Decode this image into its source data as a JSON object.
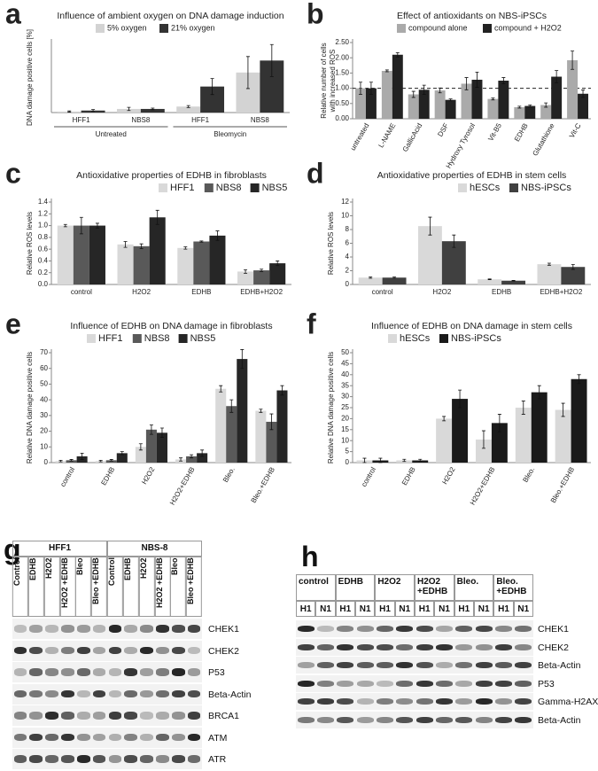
{
  "chart_data": [
    {
      "type": "bar",
      "panel_label": "a",
      "title": "Influence of ambient oxygen on DNA damage induction",
      "y_label": [
        "DNA damage positive cells [%]"
      ],
      "groups": [
        {
          "name": "Untreated",
          "categories": [
            "HFF1",
            "NBS8"
          ]
        },
        {
          "name": "Bleomycin",
          "categories": [
            "HFF1",
            "NBS8"
          ]
        }
      ],
      "series": [
        {
          "name": "5% oxygen",
          "color": "#d3d3d3",
          "values": [
            0.5,
            1.8,
            3,
            20
          ],
          "errors": [
            0.3,
            0.8,
            0.5,
            8
          ]
        },
        {
          "name": "21% oxygen",
          "color": "#333333",
          "values": [
            1,
            1.8,
            13,
            26
          ],
          "errors": [
            0.5,
            0.4,
            4,
            8
          ]
        }
      ],
      "ylim": [
        0,
        35
      ],
      "legend": "top"
    },
    {
      "type": "bar",
      "panel_label": "b",
      "title": "Effect of antioxidants on NBS-iPSCs",
      "y_label": [
        "Relative number of cells",
        "with increased ROS"
      ],
      "categories": [
        "untreated",
        "L-NAME",
        "GallicAcid",
        "DSF",
        "Hydroxy Tyrosol",
        "Vit-B5",
        "EDHB",
        "Glutathione",
        "Vit-C"
      ],
      "series": [
        {
          "name": "compound alone",
          "color": "#aaaaaa",
          "values": [
            1.0,
            1.57,
            0.8,
            0.93,
            1.15,
            0.65,
            0.38,
            0.45,
            1.92
          ],
          "errors": [
            0.2,
            0.03,
            0.1,
            0.08,
            0.2,
            0.03,
            0.03,
            0.07,
            0.3
          ]
        },
        {
          "name": "compound + H2O2",
          "color": "#222222",
          "values": [
            1.0,
            2.1,
            0.95,
            0.62,
            1.28,
            1.25,
            0.42,
            1.38,
            0.82
          ],
          "errors": [
            0.2,
            0.07,
            0.15,
            0.03,
            0.25,
            0.1,
            0.03,
            0.2,
            0.12
          ]
        }
      ],
      "ylim": [
        0,
        2.5
      ],
      "yticks": [
        {
          "value": 0,
          "label": "0.00"
        },
        {
          "value": 0.5,
          "label": "0.50"
        },
        {
          "value": 1,
          "label": "1.00"
        },
        {
          "value": 1.5,
          "label": "1.50"
        },
        {
          "value": 2,
          "label": "2.00"
        },
        {
          "value": 2.5,
          "label": "2.50"
        }
      ],
      "reference_line": 1,
      "legend": "top"
    },
    {
      "type": "bar",
      "panel_label": "c",
      "title": "Antioxidative properties of EDHB in fibroblasts",
      "y_label": [
        "Relative ROS levels"
      ],
      "categories": [
        "control",
        "H2O2",
        "EDHB",
        "EDHB+H2O2"
      ],
      "series": [
        {
          "name": "HFF1",
          "color": "#d9d9d9",
          "values": [
            1.0,
            0.68,
            0.62,
            0.22
          ],
          "errors": [
            0.02,
            0.05,
            0.02,
            0.03
          ]
        },
        {
          "name": "NBS8",
          "color": "#595959",
          "values": [
            1.0,
            0.65,
            0.73,
            0.24
          ],
          "errors": [
            0.14,
            0.04,
            0.01,
            0.02
          ]
        },
        {
          "name": "NBS5",
          "color": "#262626",
          "values": [
            1.0,
            1.14,
            0.83,
            0.36
          ],
          "errors": [
            0.04,
            0.12,
            0.08,
            0.04
          ]
        }
      ],
      "ylim": [
        0,
        1.4
      ],
      "yticks": [
        {
          "value": 0,
          "label": "0.0"
        },
        0.2,
        0.4,
        0.6,
        0.8,
        {
          "value": 1,
          "label": "1.0"
        },
        1.2,
        1.4
      ],
      "legend": "top-right"
    },
    {
      "type": "bar",
      "panel_label": "d",
      "title": "Antioxidative properties of EDHB in stem cells",
      "y_label": [
        "Relative ROS levels"
      ],
      "categories": [
        "control",
        "H2O2",
        "EDHB",
        "EDHB+H2O2"
      ],
      "series": [
        {
          "name": "hESCs",
          "color": "#d9d9d9",
          "values": [
            1.0,
            8.5,
            0.75,
            2.95
          ],
          "errors": [
            0.1,
            1.3,
            0.05,
            0.15
          ]
        },
        {
          "name": "NBS-iPSCs",
          "color": "#404040",
          "values": [
            1.0,
            6.3,
            0.55,
            2.55
          ],
          "errors": [
            0.1,
            0.9,
            0.05,
            0.35
          ]
        }
      ],
      "ylim": [
        0,
        12
      ],
      "yticks": [
        0,
        2,
        4,
        6,
        8,
        10,
        12
      ],
      "legend": "top-right"
    },
    {
      "type": "bar",
      "panel_label": "e",
      "title": "Influence of EDHB on DNA damage in fibroblasts",
      "y_label": [
        "Relative DNA damage positive cells"
      ],
      "categories": [
        "control",
        "EDHB",
        "H2O2",
        "H2O2+EDHB",
        "Bleo.",
        "Bleo.+EDHB"
      ],
      "series": [
        {
          "name": "HFF1",
          "color": "#d9d9d9",
          "values": [
            1,
            1,
            10,
            2,
            47,
            33
          ],
          "errors": [
            0.5,
            0.5,
            2,
            1,
            2,
            1
          ]
        },
        {
          "name": "NBS8",
          "color": "#595959",
          "values": [
            1.5,
            1.5,
            21,
            4,
            36,
            26
          ],
          "errors": [
            0.5,
            0.5,
            3,
            1,
            4,
            5
          ]
        },
        {
          "name": "NBS5",
          "color": "#262626",
          "values": [
            4,
            6,
            19,
            6,
            66,
            46
          ],
          "errors": [
            2,
            1,
            3,
            2,
            6,
            3
          ]
        }
      ],
      "ylim": [
        0,
        70
      ],
      "yticks": [
        0,
        10,
        20,
        30,
        40,
        50,
        60,
        70
      ],
      "legend": "top-left"
    },
    {
      "type": "bar",
      "panel_label": "f",
      "title": "Influence of EDHB on DNA damage in stem cells",
      "y_label": [
        "Relative DNA damage positive cells"
      ],
      "categories": [
        "control",
        "EDHB",
        "H2O2",
        "H2O2+EDHB",
        "Bleo.",
        "Bleo.+EDHB"
      ],
      "series": [
        {
          "name": "hESCs",
          "color": "#d9d9d9",
          "values": [
            1,
            1,
            20,
            10.5,
            25,
            24
          ],
          "errors": [
            1,
            0.5,
            1,
            4,
            3,
            3
          ]
        },
        {
          "name": "NBS-iPSCs",
          "color": "#1a1a1a",
          "values": [
            1,
            1,
            29,
            18,
            32,
            38
          ],
          "errors": [
            1,
            0.5,
            4,
            4,
            3,
            2
          ]
        }
      ],
      "ylim": [
        0,
        50
      ],
      "yticks": [
        0,
        5,
        10,
        15,
        20,
        25,
        30,
        35,
        40,
        45,
        50
      ],
      "legend": "top-left"
    }
  ],
  "blots": [
    {
      "panel_label": "g",
      "groups": [
        {
          "name": "HFF1",
          "lanes": [
            "Control",
            "EDHB",
            "H2O2",
            "H2O2 +EDHB",
            "Bleo",
            "Bleo +EDHB"
          ]
        },
        {
          "name": "NBS-8",
          "lanes": [
            "Control",
            "EDHB",
            "H2O2",
            "H2O2 +EDHB",
            "Bleo",
            "Bleo +EDHB"
          ]
        }
      ],
      "rows": [
        "CHEK1",
        "CHEK2",
        "P53",
        "Beta-Actin",
        "BRCA1",
        "ATM",
        "ATR"
      ]
    },
    {
      "panel_label": "h",
      "groups": [
        {
          "name": "control",
          "lanes": [
            "H1",
            "N1"
          ]
        },
        {
          "name": "EDHB",
          "lanes": [
            "H1",
            "N1"
          ]
        },
        {
          "name": "H2O2",
          "lanes": [
            "H1",
            "N1"
          ]
        },
        {
          "name": "H2O2 +EDHB",
          "lanes": [
            "H1",
            "N1"
          ]
        },
        {
          "name": "Bleo.",
          "lanes": [
            "H1",
            "N1"
          ]
        },
        {
          "name": "Bleo. +EDHB",
          "lanes": [
            "H1",
            "N1"
          ]
        }
      ],
      "rows": [
        "CHEK1",
        "CHEK2",
        "Beta-Actin",
        "P53",
        "Gamma-H2AX",
        "Beta-Actin"
      ]
    }
  ]
}
